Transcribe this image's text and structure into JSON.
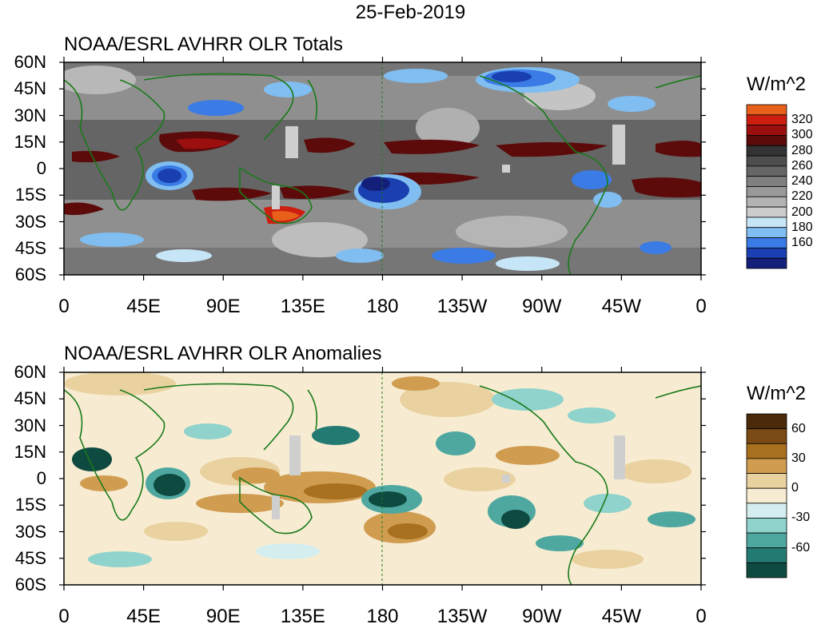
{
  "date": "25-Feb-2019",
  "panels": [
    {
      "title": "NOAA/ESRL AVHRR OLR Totals",
      "unit": "W/m^2",
      "colorbar": {
        "labels": [
          "320",
          "300",
          "280",
          "260",
          "240",
          "220",
          "200",
          "180",
          "160"
        ],
        "colors": [
          "#e8601c",
          "#cc1f10",
          "#9b0f0f",
          "#5c0a0a",
          "#333333",
          "#4d4d4d",
          "#666666",
          "#808080",
          "#999999",
          "#b3b3b3",
          "#cccccc",
          "#c6e6f7",
          "#80bdf0",
          "#3a7be6",
          "#1a3fb0",
          "#141f7a"
        ]
      }
    },
    {
      "title": "NOAA/ESRL AVHRR OLR Anomalies",
      "unit": "W/m^2",
      "colorbar": {
        "labels": [
          "60",
          "30",
          "0",
          "-30",
          "-60"
        ],
        "colors": [
          "#4a2a0a",
          "#7a4a14",
          "#a8701f",
          "#d09c50",
          "#ead2a0",
          "#f7ecd2",
          "#d4eef0",
          "#8fd3cc",
          "#4fa8a0",
          "#237a72",
          "#0e4a40"
        ]
      }
    }
  ],
  "lat_labels": [
    "60N",
    "45N",
    "30N",
    "15N",
    "0",
    "15S",
    "30S",
    "45S",
    "60S"
  ],
  "lon_labels": [
    "0",
    "45E",
    "90E",
    "135E",
    "180",
    "135W",
    "90W",
    "45W",
    "0"
  ]
}
